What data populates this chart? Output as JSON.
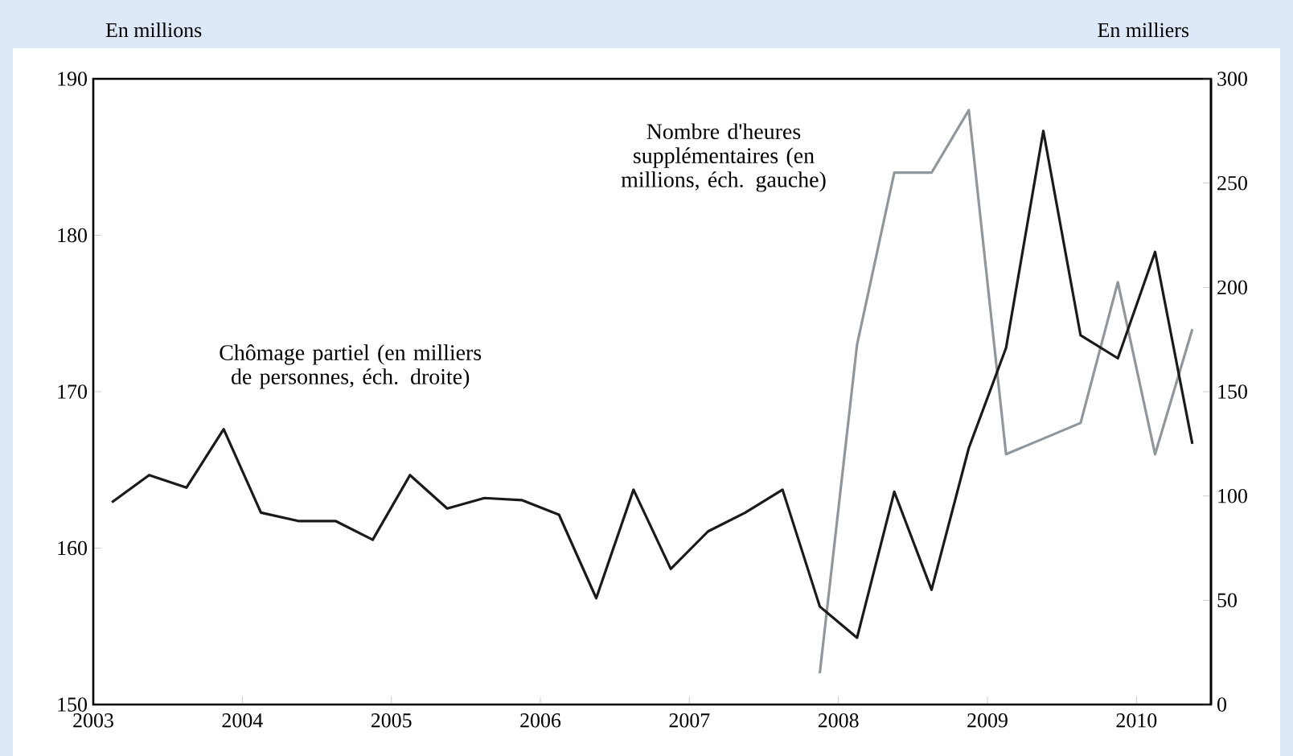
{
  "chart_data": {
    "type": "line",
    "x": [
      2003.125,
      2003.375,
      2003.625,
      2003.875,
      2004.125,
      2004.375,
      2004.625,
      2004.875,
      2005.125,
      2005.375,
      2005.625,
      2005.875,
      2006.125,
      2006.375,
      2006.625,
      2006.875,
      2007.125,
      2007.375,
      2007.625,
      2007.875,
      2008.125,
      2008.375,
      2008.625,
      2008.875,
      2009.125,
      2009.375,
      2009.625,
      2009.875,
      2010.125,
      2010.375
    ],
    "xlim": [
      2003,
      2010.5
    ],
    "xticks": [
      2003,
      2004,
      2005,
      2006,
      2007,
      2008,
      2009,
      2010
    ],
    "ylabel": "En millions",
    "y2label": "En milliers",
    "ylim": [
      150,
      190
    ],
    "yticks": [
      150,
      160,
      170,
      180,
      190
    ],
    "y2lim": [
      0,
      300
    ],
    "y2ticks": [
      0,
      50,
      100,
      150,
      200,
      250,
      300
    ],
    "grid": false,
    "marker": "none",
    "line_style": "solid",
    "series": [
      {
        "name": "Chômage partiel (en milliers de personnes, éch. droite)",
        "color": "#1a1a1a",
        "axis": "y2",
        "values": [
          97,
          110,
          104,
          132,
          92,
          88,
          88,
          79,
          110,
          94,
          99,
          98,
          91,
          51,
          103,
          65,
          83,
          92,
          103,
          47,
          32,
          102,
          55,
          123,
          171,
          275,
          177,
          166,
          217,
          125
        ]
      },
      {
        "name": "Nombre d'heures supplémentaires (en millions, éch. gauche)",
        "color": "#8f979c",
        "values": [
          null,
          null,
          null,
          null,
          null,
          null,
          null,
          null,
          null,
          null,
          null,
          null,
          null,
          null,
          null,
          null,
          null,
          null,
          null,
          152,
          173,
          184,
          184,
          188,
          166,
          167,
          168,
          177,
          166,
          174
        ]
      }
    ]
  }
}
